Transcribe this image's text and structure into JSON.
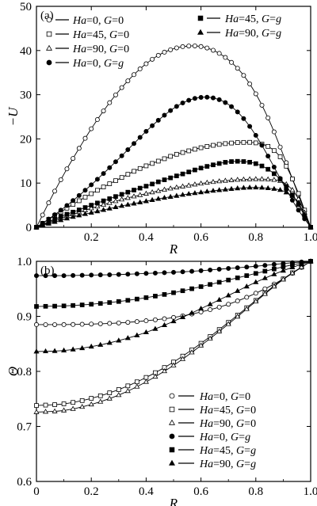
{
  "chart_data": [
    {
      "type": "line",
      "panel_label": "(a)",
      "xlabel": "R",
      "ylabel": "−U",
      "xlim": [
        0,
        1
      ],
      "ylim": [
        0,
        50
      ],
      "xticks": [
        0.2,
        0.4,
        0.6,
        0.8,
        1.0
      ],
      "xtick_labels": [
        "0.2",
        "0.4",
        "0.6",
        "0.8",
        "1.0"
      ],
      "yticks": [
        0,
        10,
        20,
        30,
        40,
        50
      ],
      "ytick_labels": [
        "0",
        "10",
        "20",
        "30",
        "40",
        "50"
      ],
      "grid": false,
      "legend_placement": "top, two columns",
      "series": [
        {
          "ha": "0",
          "g": "0",
          "marker": "open-circle",
          "legend_col": 0,
          "legend_row": 0,
          "points": 46,
          "x": [
            0,
            0.05,
            0.1,
            0.15,
            0.2,
            0.25,
            0.3,
            0.35,
            0.4,
            0.45,
            0.5,
            0.55,
            0.6,
            0.65,
            0.7,
            0.75,
            0.8,
            0.85,
            0.9,
            0.95,
            1.0
          ],
          "y": [
            0,
            6.2,
            12.0,
            17.3,
            22.3,
            26.8,
            30.8,
            34.2,
            37.0,
            39.1,
            40.4,
            41.0,
            40.9,
            39.9,
            37.9,
            34.8,
            30.2,
            24.0,
            16.4,
            8.2,
            0
          ]
        },
        {
          "ha": "45",
          "g": "0",
          "marker": "open-square",
          "legend_col": 0,
          "legend_row": 1,
          "points": 46,
          "x": [
            0,
            0.05,
            0.1,
            0.15,
            0.2,
            0.25,
            0.3,
            0.35,
            0.4,
            0.45,
            0.5,
            0.55,
            0.6,
            0.65,
            0.7,
            0.75,
            0.8,
            0.85,
            0.9,
            0.95,
            1.0
          ],
          "y": [
            0,
            2.0,
            3.9,
            5.8,
            7.6,
            9.3,
            10.9,
            12.5,
            13.9,
            15.1,
            16.3,
            17.2,
            18.0,
            18.6,
            19.0,
            19.2,
            19.1,
            18.1,
            15.0,
            8.5,
            0
          ]
        },
        {
          "ha": "90",
          "g": "0",
          "marker": "open-triangle",
          "legend_col": 0,
          "legend_row": 2,
          "points": 46,
          "x": [
            0,
            0.05,
            0.1,
            0.15,
            0.2,
            0.25,
            0.3,
            0.35,
            0.4,
            0.45,
            0.5,
            0.55,
            0.6,
            0.65,
            0.7,
            0.75,
            0.8,
            0.85,
            0.9,
            0.95,
            1.0
          ],
          "y": [
            0,
            1.2,
            2.3,
            3.3,
            4.3,
            5.2,
            6.1,
            6.9,
            7.6,
            8.3,
            8.9,
            9.4,
            9.9,
            10.3,
            10.6,
            10.8,
            10.9,
            10.8,
            10.2,
            7.0,
            0
          ]
        },
        {
          "ha": "0",
          "g": "g",
          "marker": "filled-circle",
          "legend_col": 0,
          "legend_row": 3,
          "points": 46,
          "x": [
            0,
            0.05,
            0.1,
            0.15,
            0.2,
            0.25,
            0.3,
            0.35,
            0.4,
            0.45,
            0.5,
            0.55,
            0.6,
            0.65,
            0.7,
            0.75,
            0.8,
            0.85,
            0.9,
            0.95,
            1.0
          ],
          "y": [
            0,
            2.1,
            4.4,
            6.9,
            9.6,
            12.5,
            15.5,
            18.6,
            21.7,
            24.5,
            26.9,
            28.6,
            29.4,
            29.2,
            27.8,
            25.0,
            20.8,
            15.5,
            9.8,
            4.4,
            0
          ]
        },
        {
          "ha": "45",
          "g": "g",
          "marker": "filled-square",
          "legend_col": 1,
          "legend_row": 0,
          "points": 46,
          "x": [
            0,
            0.05,
            0.1,
            0.15,
            0.2,
            0.25,
            0.3,
            0.35,
            0.4,
            0.45,
            0.5,
            0.55,
            0.6,
            0.65,
            0.7,
            0.75,
            0.8,
            0.85,
            0.9,
            0.95,
            1.0
          ],
          "y": [
            0,
            1.4,
            2.7,
            3.8,
            5.0,
            6.1,
            7.2,
            8.3,
            9.3,
            10.4,
            11.4,
            12.4,
            13.4,
            14.2,
            14.8,
            14.9,
            14.4,
            12.9,
            10.1,
            5.7,
            0
          ]
        },
        {
          "ha": "90",
          "g": "g",
          "marker": "filled-triangle",
          "legend_col": 1,
          "legend_row": 1,
          "points": 46,
          "x": [
            0,
            0.05,
            0.1,
            0.15,
            0.2,
            0.25,
            0.3,
            0.35,
            0.4,
            0.45,
            0.5,
            0.55,
            0.6,
            0.65,
            0.7,
            0.75,
            0.8,
            0.85,
            0.9,
            0.95,
            1.0
          ],
          "y": [
            0,
            0.9,
            1.8,
            2.6,
            3.3,
            4.0,
            4.7,
            5.3,
            5.9,
            6.5,
            7.0,
            7.5,
            7.9,
            8.3,
            8.6,
            8.9,
            9.0,
            8.8,
            8.2,
            6.0,
            0
          ]
        }
      ]
    },
    {
      "type": "line",
      "panel_label": "(b)",
      "xlabel": "R",
      "ylabel": "Θ",
      "xlim": [
        0,
        1
      ],
      "ylim": [
        0.6,
        1.0
      ],
      "xticks": [
        0,
        0.2,
        0.4,
        0.6,
        0.8,
        1.0
      ],
      "xtick_labels": [
        "0",
        "0.2",
        "0.4",
        "0.6",
        "0.8",
        "1.0"
      ],
      "yticks": [
        0.6,
        0.7,
        0.8,
        0.9,
        1.0
      ],
      "ytick_labels": [
        "0.6",
        "0.7",
        "0.8",
        "0.9",
        "1.0"
      ],
      "grid": false,
      "legend_placement": "bottom-right",
      "series": [
        {
          "ha": "0",
          "g": "0",
          "marker": "open-circle",
          "legend_row": 0,
          "points": 31,
          "x": [
            0,
            0.1,
            0.2,
            0.3,
            0.4,
            0.5,
            0.6,
            0.7,
            0.8,
            0.9,
            1.0
          ],
          "y": [
            0.885,
            0.885,
            0.886,
            0.888,
            0.892,
            0.898,
            0.908,
            0.922,
            0.942,
            0.968,
            1.0
          ]
        },
        {
          "ha": "45",
          "g": "0",
          "marker": "open-square",
          "legend_row": 1,
          "points": 31,
          "x": [
            0,
            0.1,
            0.2,
            0.3,
            0.4,
            0.5,
            0.6,
            0.7,
            0.8,
            0.9,
            1.0
          ],
          "y": [
            0.738,
            0.741,
            0.751,
            0.767,
            0.789,
            0.817,
            0.851,
            0.889,
            0.929,
            0.968,
            1.0
          ]
        },
        {
          "ha": "90",
          "g": "0",
          "marker": "open-triangle",
          "legend_row": 2,
          "points": 31,
          "x": [
            0,
            0.1,
            0.2,
            0.3,
            0.4,
            0.5,
            0.6,
            0.7,
            0.8,
            0.9,
            1.0
          ],
          "y": [
            0.726,
            0.729,
            0.74,
            0.757,
            0.781,
            0.811,
            0.847,
            0.886,
            0.927,
            0.967,
            1.0
          ]
        },
        {
          "ha": "0",
          "g": "g",
          "marker": "filled-circle",
          "legend_row": 3,
          "points": 31,
          "x": [
            0,
            0.1,
            0.2,
            0.3,
            0.4,
            0.5,
            0.6,
            0.7,
            0.8,
            0.9,
            1.0
          ],
          "y": [
            0.974,
            0.974,
            0.975,
            0.976,
            0.978,
            0.98,
            0.983,
            0.987,
            0.991,
            0.996,
            1.0
          ]
        },
        {
          "ha": "45",
          "g": "g",
          "marker": "filled-square",
          "legend_row": 4,
          "points": 31,
          "x": [
            0,
            0.1,
            0.2,
            0.3,
            0.4,
            0.5,
            0.6,
            0.7,
            0.8,
            0.9,
            1.0
          ],
          "y": [
            0.918,
            0.919,
            0.922,
            0.927,
            0.934,
            0.943,
            0.954,
            0.966,
            0.978,
            0.99,
            1.0
          ]
        },
        {
          "ha": "90",
          "g": "g",
          "marker": "filled-triangle",
          "legend_row": 5,
          "points": 31,
          "x": [
            0,
            0.1,
            0.2,
            0.3,
            0.4,
            0.5,
            0.6,
            0.7,
            0.8,
            0.9,
            1.0
          ],
          "y": [
            0.836,
            0.838,
            0.845,
            0.856,
            0.871,
            0.891,
            0.914,
            0.938,
            0.962,
            0.983,
            1.0
          ]
        }
      ]
    }
  ]
}
